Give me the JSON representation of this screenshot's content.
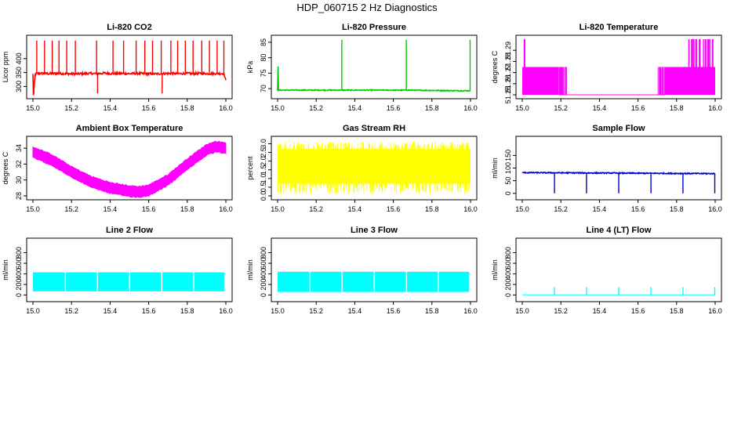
{
  "page_title": "HDP_060715 2 Hz Diagnostics",
  "chart_data": [
    {
      "type": "line",
      "title": "Li-820 CO2",
      "xlabel": "",
      "ylabel": "Licor ppm",
      "xlim": [
        15.0,
        16.0
      ],
      "ylim": [
        270,
        470
      ],
      "xticks": [
        "15.0",
        "15.2",
        "15.4",
        "15.6",
        "15.8",
        "16.0"
      ],
      "yticks": [
        {
          "v": 300,
          "label": "300"
        },
        {
          "v": 350,
          "label": "350"
        },
        {
          "v": 400,
          "label": "400"
        }
      ],
      "color": "#ff0000",
      "series": [
        {
          "name": "",
          "x": [
            15.0,
            15.0025,
            15.0125,
            15.0417,
            15.0833,
            15.125,
            15.1667,
            15.2083,
            15.25,
            15.2917,
            15.3333,
            15.375,
            15.4167,
            15.4583,
            15.5,
            15.5417,
            15.5833,
            15.625,
            15.6667,
            15.7083,
            15.75,
            15.7917,
            15.8333,
            15.875,
            15.9167,
            15.9583,
            15.99,
            16.0
          ],
          "y": [
            344,
            270,
            346,
            347,
            346,
            347,
            346,
            345,
            346,
            347,
            346,
            348,
            346,
            347,
            346,
            347,
            346,
            345,
            346,
            347,
            346,
            347,
            346,
            347,
            346,
            347,
            346,
            320
          ]
        }
      ],
      "spikes_up": [
        15.02,
        15.06,
        15.1,
        15.135,
        15.175,
        15.22,
        15.33,
        15.415,
        15.47,
        15.535,
        15.58,
        15.62,
        15.665,
        15.715,
        15.75,
        15.79,
        15.83,
        15.875,
        15.915,
        15.955,
        15.99
      ],
      "spike_up_to": 465,
      "spikes_down": [
        15.005,
        15.335,
        15.67
      ],
      "spike_down_to": 275,
      "noise": 4
    },
    {
      "type": "line",
      "title": "Li-820 Pressure",
      "xlabel": "",
      "ylabel": "kPa",
      "xlim": [
        15.0,
        16.0
      ],
      "ylim": [
        68,
        86
      ],
      "xticks": [
        "15.0",
        "15.2",
        "15.4",
        "15.6",
        "15.8",
        "16.0"
      ],
      "yticks": [
        {
          "v": 70,
          "label": "70"
        },
        {
          "v": 75,
          "label": "75"
        },
        {
          "v": 80,
          "label": "80"
        },
        {
          "v": 85,
          "label": "85"
        }
      ],
      "color": "#00cc00",
      "series": [
        {
          "name": "",
          "x": [
            15.0,
            15.0015,
            15.004,
            15.3333,
            15.6667,
            16.0
          ],
          "y": [
            69.5,
            82.5,
            69.5,
            69.5,
            69.5,
            69.3
          ]
        }
      ],
      "spikes_up": [
        15.333,
        15.667,
        15.998
      ],
      "spike_up_to": 85.8,
      "spikes_down": [],
      "spike_down_to": 69,
      "noise": 0.15
    },
    {
      "type": "line",
      "title": "Li-820 Temperature",
      "xlabel": "",
      "ylabel": "degrees C",
      "xlim": [
        15.0,
        16.0
      ],
      "ylim": [
        51.25,
        51.3
      ],
      "xticks": [
        "15.0",
        "15.2",
        "15.4",
        "15.6",
        "15.8",
        "16.0"
      ],
      "yticks": [
        {
          "v": 51.25,
          "label": "51.25"
        },
        {
          "v": 51.26,
          "label": "51.26"
        },
        {
          "v": 51.27,
          "label": "51.27"
        },
        {
          "v": 51.28,
          "label": "51.28"
        },
        {
          "v": 51.29,
          "label": "51.29"
        }
      ],
      "color": "#ff00ff",
      "series": [
        {
          "name": "",
          "x": [
            15.0,
            15.19,
            15.21,
            15.72,
            15.74,
            16.0
          ],
          "y": [
            51.275,
            51.275,
            51.25,
            51.25,
            51.275,
            51.275
          ]
        }
      ],
      "band": {
        "low": 51.25,
        "high": 51.275,
        "from": 15.0,
        "to": 15.19
      },
      "band2": {
        "low": 51.25,
        "high": 51.275,
        "from": 15.74,
        "to": 16.0
      },
      "top_spikes": {
        "from": 15.86,
        "to": 15.995,
        "top": 51.3
      },
      "left_spikes": {
        "from": 15.0,
        "to": 15.015,
        "top": 51.3
      }
    },
    {
      "type": "line",
      "title": "Ambient Box Temperature",
      "xlabel": "",
      "ylabel": "degrees C",
      "xlim": [
        15.0,
        16.0
      ],
      "ylim": [
        28,
        35
      ],
      "xticks": [
        "15.0",
        "15.2",
        "15.4",
        "15.6",
        "15.8",
        "16.0"
      ],
      "yticks": [
        {
          "v": 28,
          "label": "28"
        },
        {
          "v": 30,
          "label": "30"
        },
        {
          "v": 32,
          "label": "32"
        },
        {
          "v": 34,
          "label": "34"
        }
      ],
      "color": "#ff00ff",
      "series": [
        {
          "name": "",
          "x": [
            15.0,
            15.1,
            15.2,
            15.3,
            15.4,
            15.5,
            15.55,
            15.6,
            15.7,
            15.8,
            15.9,
            15.95,
            16.0
          ],
          "y": [
            33.5,
            32.5,
            31.0,
            29.8,
            29.0,
            28.6,
            28.5,
            28.7,
            30.0,
            32.0,
            33.8,
            34.2,
            34.0
          ]
        }
      ],
      "thickness": 0.6
    },
    {
      "type": "line",
      "title": "Gas Stream RH",
      "xlabel": "",
      "ylabel": "percent",
      "xlim": [
        15.0,
        16.0
      ],
      "ylim": [
        0,
        3.2
      ],
      "xticks": [
        "15.0",
        "15.2",
        "15.4",
        "15.6",
        "15.8",
        "16.0"
      ],
      "yticks": [
        {
          "v": 0.0,
          "label": "0.0"
        },
        {
          "v": 0.5,
          "label": "0.5"
        },
        {
          "v": 1.0,
          "label": "1.0"
        },
        {
          "v": 1.5,
          "label": "1.5"
        },
        {
          "v": 2.0,
          "label": "2.0"
        },
        {
          "v": 2.5,
          "label": "2.5"
        },
        {
          "v": 3.0,
          "label": "3.0"
        }
      ],
      "color": "#ffff00",
      "series": [
        {
          "name": "",
          "x": [
            15.0,
            16.0
          ],
          "y": [
            1.7,
            1.7
          ]
        }
      ],
      "noise_band": {
        "low": 0.7,
        "high": 2.7,
        "outer_low": 0.1,
        "outer_high": 3.1
      }
    },
    {
      "type": "line",
      "title": "Sample Flow",
      "xlabel": "",
      "ylabel": "ml/min",
      "xlim": [
        15.0,
        16.0
      ],
      "ylim": [
        -10,
        210
      ],
      "xticks": [
        "15.0",
        "15.2",
        "15.4",
        "15.6",
        "15.8",
        "16.0"
      ],
      "yticks": [
        {
          "v": 0,
          "label": "0"
        },
        {
          "v": 50,
          "label": "50"
        },
        {
          "v": 100,
          "label": "100"
        },
        {
          "v": 150,
          "label": "150"
        }
      ],
      "color": "#0000cc",
      "series": [
        {
          "name": "",
          "x": [
            15.0,
            15.5,
            16.0
          ],
          "y": [
            82,
            80,
            78
          ]
        }
      ],
      "spikes_down": [
        15.167,
        15.333,
        15.5,
        15.667,
        15.833,
        15.998
      ],
      "spike_down_to": 0,
      "noise": 2
    },
    {
      "type": "area",
      "title": "Line 2 Flow",
      "xlabel": "",
      "ylabel": "ml/min",
      "xlim": [
        15.0,
        16.0
      ],
      "ylim": [
        -50,
        1000
      ],
      "xticks": [
        "15.0",
        "15.2",
        "15.4",
        "15.6",
        "15.8",
        "16.0"
      ],
      "yticks": [
        {
          "v": 0,
          "label": "0"
        },
        {
          "v": 200,
          "label": "200"
        },
        {
          "v": 400,
          "label": "400"
        },
        {
          "v": 600,
          "label": "600"
        },
        {
          "v": 800,
          "label": "800"
        }
      ],
      "color": "#00ffff",
      "series": [
        {
          "name": "",
          "x": [
            15.0,
            16.0
          ],
          "y": [
            420,
            420
          ]
        }
      ],
      "band": {
        "low": 70,
        "high": 430
      },
      "gaps": [
        15.167,
        15.333,
        15.5,
        15.667,
        15.833
      ]
    },
    {
      "type": "area",
      "title": "Line 3 Flow",
      "xlabel": "",
      "ylabel": "ml/min",
      "xlim": [
        15.0,
        16.0
      ],
      "ylim": [
        -50,
        1000
      ],
      "xticks": [
        "15.0",
        "15.2",
        "15.4",
        "15.6",
        "15.8",
        "16.0"
      ],
      "yticks": [
        {
          "v": 0,
          "label": "0"
        },
        {
          "v": 200,
          "label": "200"
        },
        {
          "v": 400,
          "label": "400"
        },
        {
          "v": 600,
          "label": "600"
        },
        {
          "v": 800,
          "label": "800"
        }
      ],
      "color": "#00ffff",
      "series": [
        {
          "name": "",
          "x": [
            15.0,
            16.0
          ],
          "y": [
            420,
            420
          ]
        }
      ],
      "band": {
        "low": 60,
        "high": 440
      },
      "gaps": [
        15.167,
        15.333,
        15.5,
        15.667,
        15.833
      ]
    },
    {
      "type": "line",
      "title": "Line 4 (LT) Flow",
      "xlabel": "",
      "ylabel": "ml/min",
      "xlim": [
        15.0,
        16.0
      ],
      "ylim": [
        -50,
        1000
      ],
      "xticks": [
        "15.0",
        "15.2",
        "15.4",
        "15.6",
        "15.8",
        "16.0"
      ],
      "yticks": [
        {
          "v": 0,
          "label": "0"
        },
        {
          "v": 200,
          "label": "200"
        },
        {
          "v": 400,
          "label": "400"
        },
        {
          "v": 600,
          "label": "600"
        },
        {
          "v": 800,
          "label": "800"
        }
      ],
      "color": "#00ffff",
      "series": [
        {
          "name": "",
          "x": [
            15.0,
            16.0
          ],
          "y": [
            5,
            5
          ]
        }
      ],
      "spikes_up": [
        15.167,
        15.333,
        15.5,
        15.667,
        15.833,
        15.998
      ],
      "spike_up_to": 150,
      "noise": 0
    }
  ]
}
